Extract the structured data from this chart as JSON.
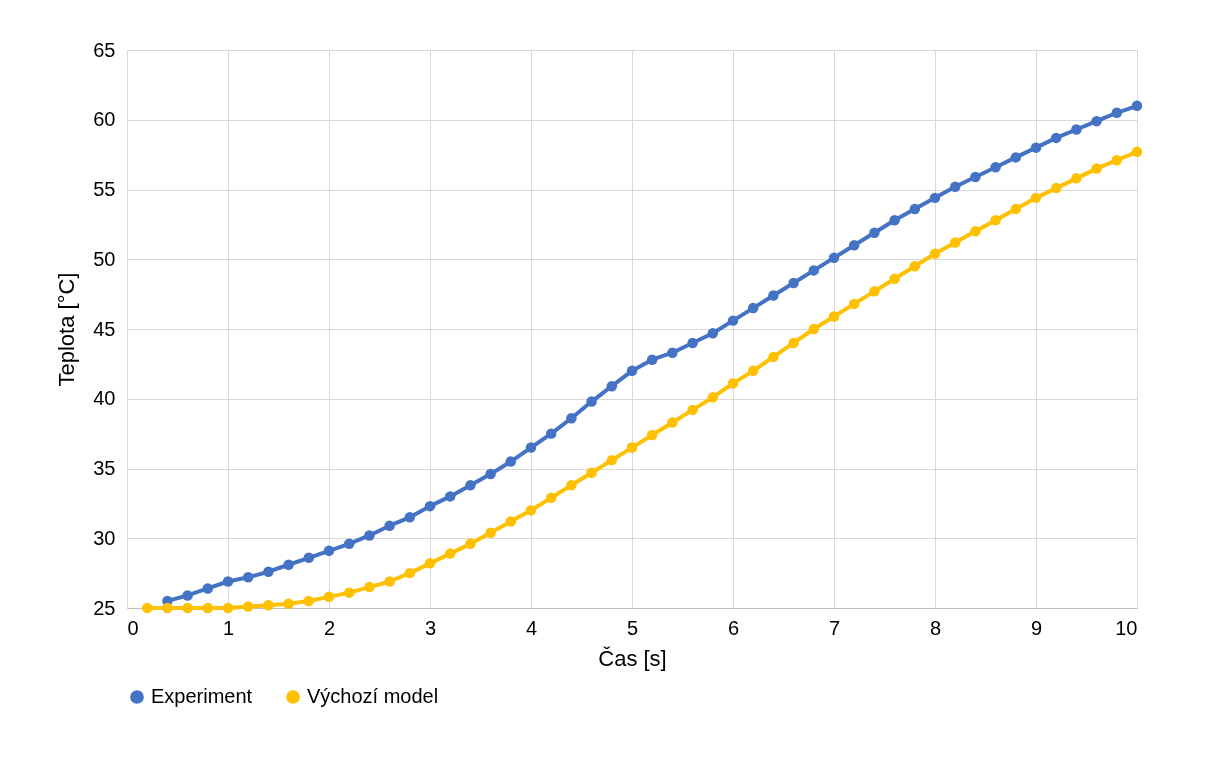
{
  "chart_data": {
    "type": "line",
    "xlabel": "Čas [s]",
    "ylabel": "Teplota [°C]",
    "x": [
      0.2,
      0.4,
      0.6,
      0.8,
      1.0,
      1.2,
      1.4,
      1.6,
      1.8,
      2.0,
      2.2,
      2.4,
      2.6,
      2.8,
      3.0,
      3.2,
      3.4,
      3.6,
      3.8,
      4.0,
      4.2,
      4.4,
      4.6,
      4.8,
      5.0,
      5.2,
      5.4,
      5.6,
      5.8,
      6.0,
      6.2,
      6.4,
      6.6,
      6.8,
      7.0,
      7.2,
      7.4,
      7.6,
      7.8,
      8.0,
      8.2,
      8.4,
      8.6,
      8.8,
      9.0,
      9.2,
      9.4,
      9.6,
      9.8,
      10.0
    ],
    "series": [
      {
        "name": "Experiment",
        "color": "#4472c4",
        "values": [
          null,
          25.5,
          25.9,
          26.4,
          26.9,
          27.2,
          27.6,
          28.1,
          28.6,
          29.1,
          29.6,
          30.2,
          30.9,
          31.5,
          32.3,
          33.0,
          33.8,
          34.6,
          35.5,
          36.5,
          37.5,
          38.6,
          39.8,
          40.9,
          42.0,
          42.8,
          43.3,
          44.0,
          44.7,
          45.6,
          46.5,
          47.4,
          48.3,
          49.2,
          50.1,
          51.0,
          51.9,
          52.8,
          53.6,
          54.4,
          55.2,
          55.9,
          56.6,
          57.3,
          58.0,
          58.7,
          59.3,
          59.9,
          60.5,
          61.0
        ]
      },
      {
        "name": "Výchozí model",
        "color": "#ffc000",
        "values": [
          25.0,
          25.0,
          25.0,
          25.0,
          25.0,
          25.1,
          25.2,
          25.3,
          25.5,
          25.8,
          26.1,
          26.5,
          26.9,
          27.5,
          28.2,
          28.9,
          29.6,
          30.4,
          31.2,
          32.0,
          32.9,
          33.8,
          34.7,
          35.6,
          36.5,
          37.4,
          38.3,
          39.2,
          40.1,
          41.1,
          42.0,
          43.0,
          44.0,
          45.0,
          45.9,
          46.8,
          47.7,
          48.6,
          49.5,
          50.4,
          51.2,
          52.0,
          52.8,
          53.6,
          54.4,
          55.1,
          55.8,
          56.5,
          57.1,
          57.7
        ]
      }
    ],
    "xlim": [
      0,
      10
    ],
    "xticks": [
      0,
      1,
      2,
      3,
      4,
      5,
      6,
      7,
      8,
      9,
      10
    ],
    "ylim": [
      25,
      65
    ],
    "yticks": [
      25,
      30,
      35,
      40,
      45,
      50,
      55,
      60,
      65
    ],
    "grid": true,
    "legend": "bottom",
    "marker": "circle"
  }
}
